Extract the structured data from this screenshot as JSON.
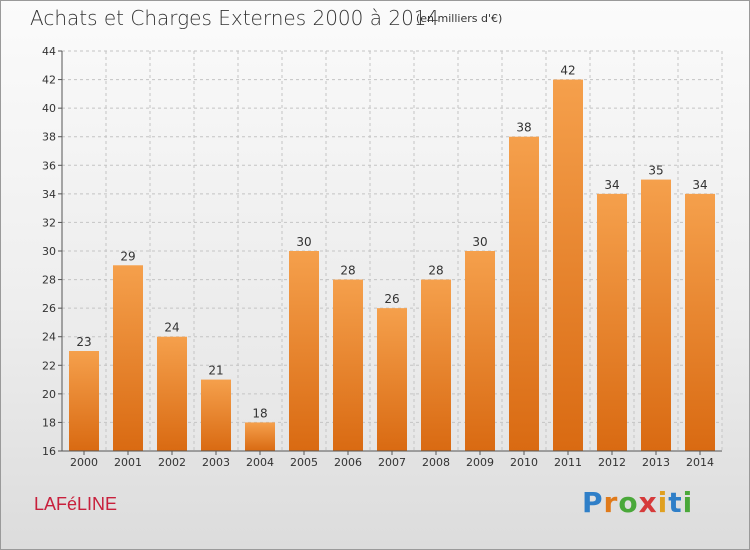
{
  "header": {
    "title": "Achats et Charges Externes 2000 à 2014",
    "subtitle": "(en milliers d'€)"
  },
  "footer": {
    "commune": "LAFéLINE",
    "logo": {
      "letters": [
        "P",
        "r",
        "o",
        "x",
        "i",
        "t",
        "i"
      ],
      "colors": [
        "#2f7fc8",
        "#e07a1a",
        "#4aa83a",
        "#d63a3a",
        "#e0a020",
        "#2f7fc8",
        "#4aa83a"
      ]
    }
  },
  "chart_data": {
    "type": "bar",
    "categories": [
      "2000",
      "2001",
      "2002",
      "2003",
      "2004",
      "2005",
      "2006",
      "2007",
      "2008",
      "2009",
      "2010",
      "2011",
      "2012",
      "2013",
      "2014"
    ],
    "values": [
      23,
      29,
      24,
      21,
      18,
      30,
      28,
      26,
      28,
      30,
      38,
      42,
      34,
      35,
      34
    ],
    "title": "Achats et Charges Externes 2000 à 2014",
    "subtitle": "(en milliers d'€)",
    "ylim": [
      16,
      44
    ],
    "yticks": [
      16,
      18,
      20,
      22,
      24,
      26,
      28,
      30,
      32,
      34,
      36,
      38,
      40,
      42,
      44
    ],
    "grid": true,
    "bar_color_top": "#f5a04c",
    "bar_color_bottom": "#d96a12"
  }
}
